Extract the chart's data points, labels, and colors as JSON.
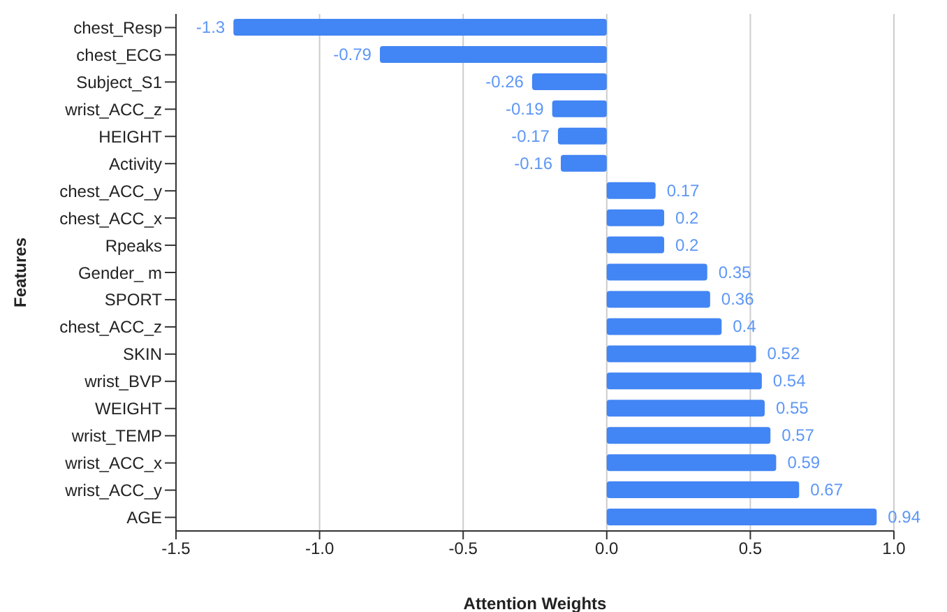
{
  "chart_data": {
    "type": "bar",
    "orientation": "horizontal",
    "xlabel": "Attention Weights",
    "ylabel": "Features",
    "categories": [
      "chest_Resp",
      "chest_ECG",
      "Subject_S1",
      "wrist_ACC_z",
      "HEIGHT",
      "Activity",
      "chest_ACC_y",
      "chest_ACC_x",
      "Rpeaks",
      "Gender_ m",
      "SPORT",
      "chest_ACC_z",
      "SKIN",
      "wrist_BVP",
      "WEIGHT",
      "wrist_TEMP",
      "wrist_ACC_x",
      "wrist_ACC_y",
      "AGE"
    ],
    "values": [
      -1.3,
      -0.79,
      -0.26,
      -0.19,
      -0.17,
      -0.16,
      0.17,
      0.2,
      0.2,
      0.35,
      0.36,
      0.4,
      0.52,
      0.54,
      0.55,
      0.57,
      0.59,
      0.67,
      0.94
    ],
    "color": "#4285f4",
    "data_labels": true,
    "xlim": [
      -1.5,
      1.0
    ],
    "xticks": [
      -1.5,
      {
        "value": -1.0,
        "label": "-1.0"
      },
      -0.5,
      {
        "value": 0,
        "label": "0.0"
      },
      0.5,
      {
        "value": 1.0,
        "label": "1.0"
      }
    ],
    "grid": "x",
    "legend": false
  }
}
